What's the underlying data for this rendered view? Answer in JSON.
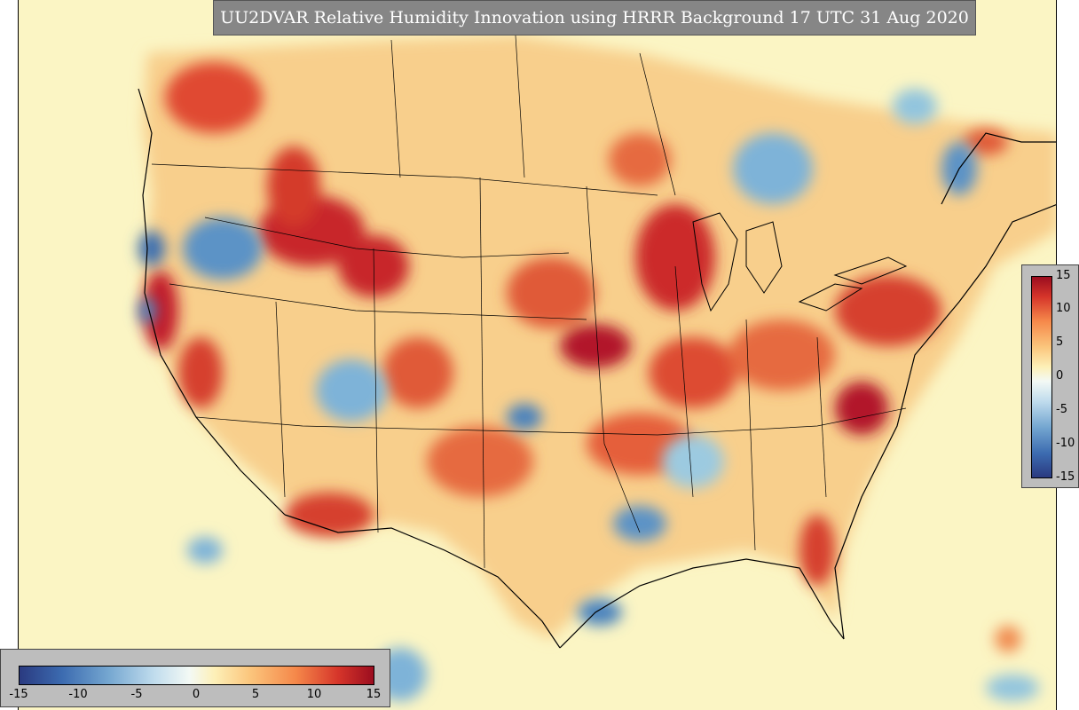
{
  "title": "UU2DVAR Relative Humidity Innovation using HRRR Background 17 UTC 31 Aug 2020",
  "colorbar": {
    "vertical_ticks": [
      "15",
      "10",
      "5",
      "0",
      "-5",
      "-10",
      "-15"
    ],
    "horizontal_ticks": [
      "-15",
      "-10",
      "-5",
      "0",
      "5",
      "10",
      "15"
    ],
    "range": [
      -15,
      15
    ]
  },
  "colors": {
    "ocean": "#fbf5c4",
    "strong_positive": "#b2182b",
    "positive": "#f4a261",
    "neutral": "#f7f7f7",
    "negative": "#92c5de",
    "strong_negative": "#2166ac"
  }
}
